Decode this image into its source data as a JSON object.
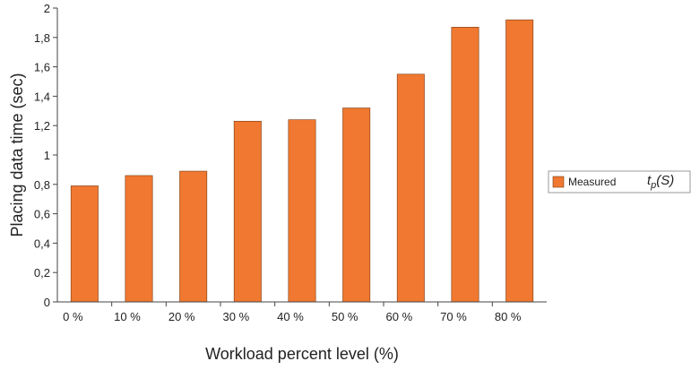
{
  "chart_data": {
    "type": "bar",
    "title": "",
    "xlabel": "Workload percent level (%)",
    "ylabel": "Placing data time (sec)",
    "categories": [
      "0 %",
      "10 %",
      "20 %",
      "30 %",
      "40 %",
      "50 %",
      "60 %",
      "70 %",
      "80 %"
    ],
    "yticks": [
      "0",
      "0,2",
      "0,4",
      "0,6",
      "0,8",
      "1",
      "1,2",
      "1,4",
      "1,6",
      "1,8",
      "2"
    ],
    "ylim": [
      0,
      2
    ],
    "grid": false,
    "legend_position": "right",
    "series": [
      {
        "name": "Measured",
        "color": "#f07830",
        "values": [
          0.79,
          0.86,
          0.89,
          1.23,
          1.24,
          1.32,
          1.55,
          1.87,
          1.92
        ]
      }
    ],
    "legend": {
      "label": "Measured",
      "formula_main": "t",
      "formula_sub": "p",
      "formula_arg": "(S)"
    }
  }
}
